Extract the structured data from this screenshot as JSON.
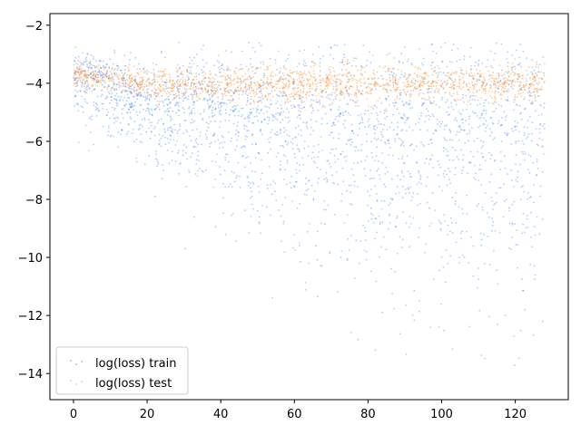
{
  "chart_data": {
    "type": "scatter",
    "title": "",
    "xlabel": "",
    "ylabel": "",
    "xlim": [
      -6.4,
      134.4
    ],
    "ylim": [
      -14.9,
      -1.6
    ],
    "xticks": [
      0,
      20,
      40,
      60,
      80,
      100,
      120
    ],
    "yticks": [
      -14,
      -12,
      -10,
      -8,
      -6,
      -4,
      -2
    ],
    "grid": false,
    "legend": {
      "position": "lower-left"
    },
    "series": [
      {
        "name": "log(loss) train",
        "color": "#1a75ff",
        "trend": [
          {
            "x": 0,
            "y": -3.6,
            "spread": 0.5
          },
          {
            "x": 20,
            "y": -4.7,
            "spread": 0.9
          },
          {
            "x": 40,
            "y": -5.1,
            "spread": 1.3
          },
          {
            "x": 60,
            "y": -5.4,
            "spread": 1.7
          },
          {
            "x": 80,
            "y": -5.6,
            "spread": 2.0
          },
          {
            "x": 100,
            "y": -5.7,
            "spread": 2.2
          },
          {
            "x": 128,
            "y": -5.8,
            "spread": 2.4
          }
        ],
        "ymin": -14.0,
        "ymax": -2.6
      },
      {
        "name": "log(loss) test",
        "color": "#ff7f0e",
        "trend": [
          {
            "x": 0,
            "y": -3.7,
            "spread": 0.3
          },
          {
            "x": 20,
            "y": -4.0,
            "spread": 0.35
          },
          {
            "x": 40,
            "y": -4.1,
            "spread": 0.4
          },
          {
            "x": 60,
            "y": -4.1,
            "spread": 0.4
          },
          {
            "x": 80,
            "y": -4.0,
            "spread": 0.4
          },
          {
            "x": 100,
            "y": -4.0,
            "spread": 0.4
          },
          {
            "x": 128,
            "y": -4.0,
            "spread": 0.4
          }
        ],
        "ymin": -5.5,
        "ymax": -3.0
      }
    ],
    "x_range_data": [
      0,
      128
    ]
  }
}
